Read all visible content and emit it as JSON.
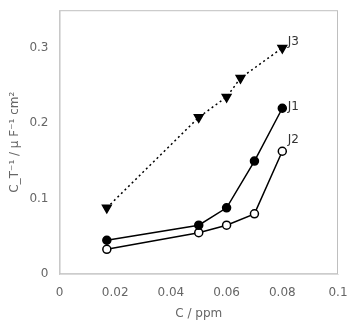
{
  "chart_data": {
    "type": "line",
    "x_label": "C / ppm",
    "y_label": "C_T⁻¹ / μ F⁻¹ cm²",
    "series": [
      {
        "name": "J3",
        "color": "#000000",
        "marker": "triangle-down",
        "line_style": "dotted",
        "x": [
          0.017,
          0.05,
          0.06,
          0.065,
          0.08
        ],
        "values": [
          0.088,
          0.208,
          0.235,
          0.26,
          0.3
        ]
      },
      {
        "name": "J1",
        "color": "#000000",
        "marker": "circle",
        "line_style": "solid",
        "x": [
          0.017,
          0.05,
          0.06,
          0.07,
          0.08
        ],
        "values": [
          0.045,
          0.065,
          0.088,
          0.15,
          0.22
        ]
      },
      {
        "name": "J2",
        "color": "#000000",
        "marker": "circle-open",
        "line_style": "solid",
        "x": [
          0.017,
          0.05,
          0.06,
          0.07,
          0.08
        ],
        "values": [
          0.033,
          0.055,
          0.065,
          0.08,
          0.163
        ]
      }
    ],
    "annotations": [
      {
        "text": "J3",
        "x": 0.0805,
        "y": 0.308
      },
      {
        "text": "J1",
        "x": 0.0805,
        "y": 0.222
      },
      {
        "text": "J2",
        "x": 0.0805,
        "y": 0.178
      }
    ],
    "xlim": [
      0,
      0.1
    ],
    "ylim": [
      0,
      0.35
    ],
    "xticks": [
      0,
      0.02,
      0.04,
      0.06,
      0.08,
      0.1
    ],
    "yticks": [
      0,
      0.1,
      0.2,
      0.3
    ],
    "grid": false
  }
}
